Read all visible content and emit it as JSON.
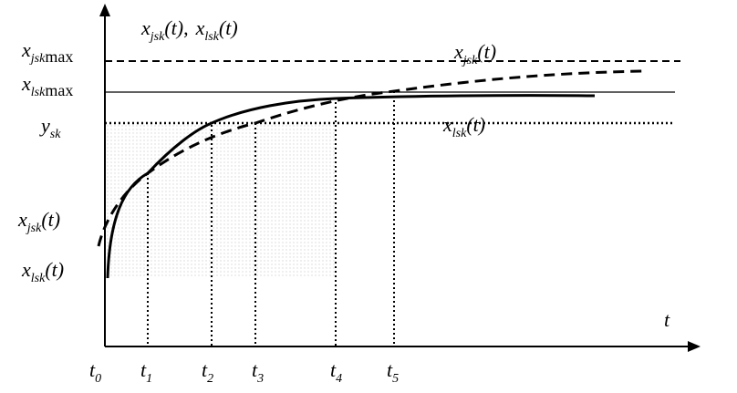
{
  "axis_title": {
    "first": {
      "main": "x",
      "sub": "jsk",
      "tail": "(t)"
    },
    "separator": ",",
    "second": {
      "main": "x",
      "sub": "lsk",
      "tail": "(t)"
    }
  },
  "x_axis_label": {
    "main": "t"
  },
  "y_labels": [
    {
      "main": "x",
      "sub": "jsk",
      "tail": "max"
    },
    {
      "main": "x",
      "sub": "lsk",
      "tail": "max"
    },
    {
      "main": "y",
      "sub": "sk"
    },
    {
      "main": "x",
      "sub": "jsk",
      "tail": "(t)"
    },
    {
      "main": "x",
      "sub": "lsk",
      "tail": "(t)"
    }
  ],
  "t_labels": [
    {
      "main": "t",
      "sub": "0"
    },
    {
      "main": "t",
      "sub": "1"
    },
    {
      "main": "t",
      "sub": "2"
    },
    {
      "main": "t",
      "sub": "3"
    },
    {
      "main": "t",
      "sub": "4"
    },
    {
      "main": "t",
      "sub": "5"
    }
  ],
  "curve_labels": [
    {
      "main": "x",
      "sub": "jsk",
      "tail": "(t)"
    },
    {
      "main": "x",
      "sub": "lsk",
      "tail": "(t)"
    }
  ]
}
